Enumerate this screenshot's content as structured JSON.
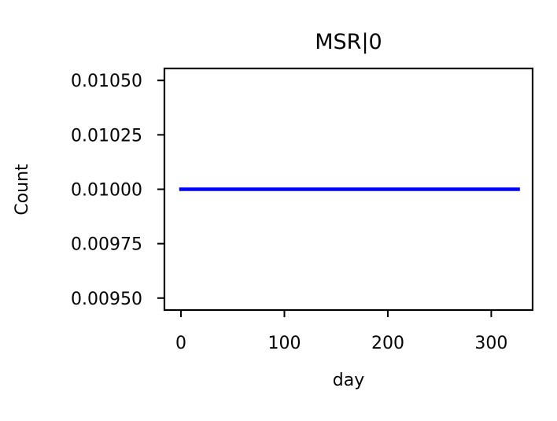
{
  "chart_data": {
    "type": "line",
    "title": "MSR|0",
    "xlabel": "day",
    "ylabel": "Count",
    "xlim": [
      -16,
      340
    ],
    "ylim": [
      0.009445,
      0.010555
    ],
    "xticks": [
      0,
      100,
      200,
      300
    ],
    "xtick_labels": [
      "0",
      "100",
      "200",
      "300"
    ],
    "yticks": [
      0.0095,
      0.00975,
      0.01,
      0.01025,
      0.0105
    ],
    "ytick_labels": [
      "0.00950",
      "0.00975",
      "0.01000",
      "0.01025",
      "0.01050"
    ],
    "grid": false,
    "legend": "none",
    "series": [
      {
        "color": "#0000ff",
        "x": [
          0,
          326
        ],
        "y": [
          0.01,
          0.01
        ]
      }
    ]
  }
}
